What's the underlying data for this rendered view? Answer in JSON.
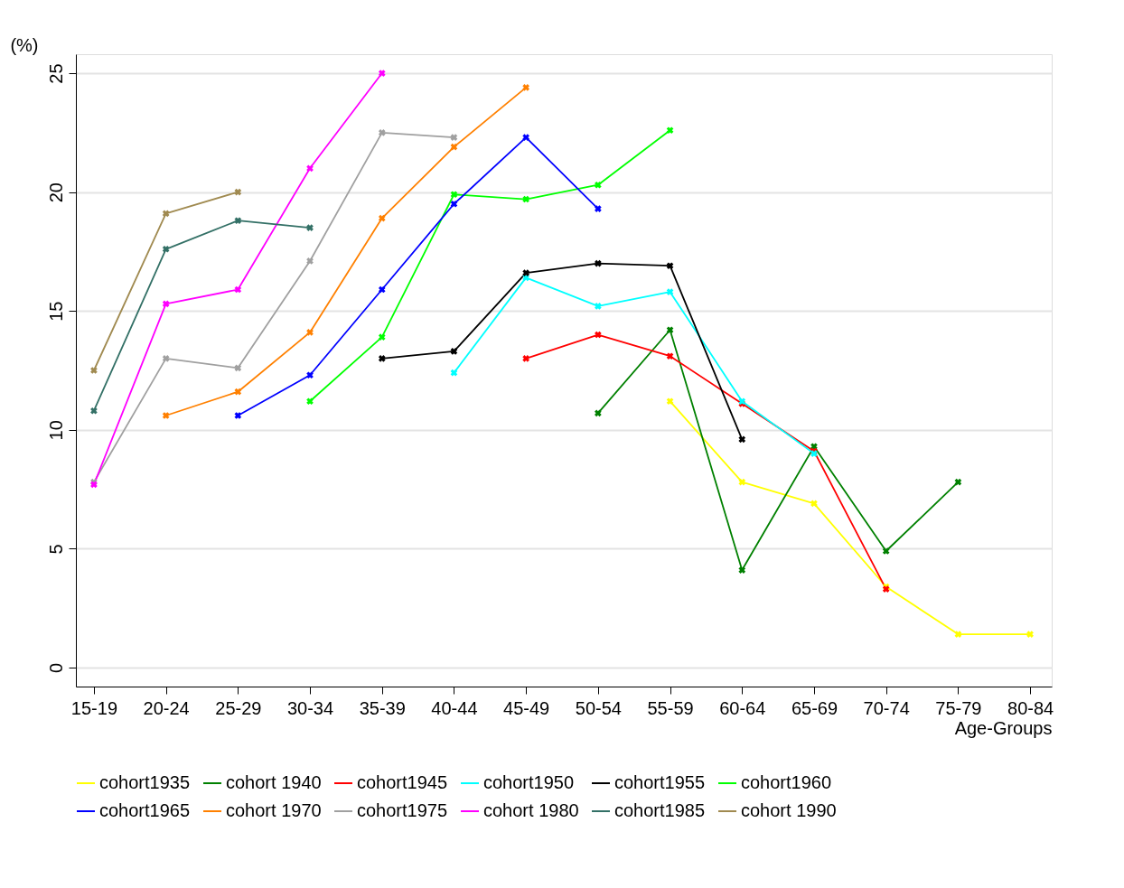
{
  "chart_data": {
    "type": "line",
    "ylabel": "(%)",
    "xlabel": "Age-Groups",
    "categories": [
      "15-19",
      "20-24",
      "25-29",
      "30-34",
      "35-39",
      "40-44",
      "45-49",
      "50-54",
      "55-59",
      "60-64",
      "65-69",
      "70-74",
      "75-79",
      "80-84"
    ],
    "series": [
      {
        "name": "cohort1935",
        "color": "#ffff00",
        "values": [
          null,
          null,
          null,
          null,
          null,
          null,
          null,
          null,
          11.2,
          7.8,
          6.9,
          3.4,
          1.4,
          1.4
        ]
      },
      {
        "name": "cohort 1940",
        "color": "#008000",
        "values": [
          null,
          null,
          null,
          null,
          null,
          null,
          null,
          10.7,
          14.2,
          4.1,
          9.3,
          4.9,
          7.8,
          null
        ]
      },
      {
        "name": "cohort1945",
        "color": "#ff0000",
        "values": [
          null,
          null,
          null,
          null,
          null,
          null,
          13.0,
          14.0,
          13.1,
          11.1,
          9.1,
          3.3,
          null,
          null
        ]
      },
      {
        "name": "cohort1950",
        "color": "#00ffff",
        "values": [
          null,
          null,
          null,
          null,
          null,
          12.4,
          16.4,
          15.2,
          15.8,
          11.2,
          9.0,
          null,
          null,
          null
        ]
      },
      {
        "name": "cohort1955",
        "color": "#000000",
        "values": [
          null,
          null,
          null,
          null,
          13.0,
          13.3,
          16.6,
          17.0,
          16.9,
          9.6,
          null,
          null,
          null,
          null
        ]
      },
      {
        "name": "cohort1960",
        "color": "#00ff00",
        "values": [
          null,
          null,
          null,
          11.2,
          13.9,
          19.9,
          19.7,
          20.3,
          22.6,
          null,
          null,
          null,
          null,
          null
        ]
      },
      {
        "name": "cohort1965",
        "color": "#0000ff",
        "values": [
          null,
          null,
          10.6,
          12.3,
          15.9,
          19.5,
          22.3,
          19.3,
          null,
          null,
          null,
          null,
          null,
          null
        ]
      },
      {
        "name": "cohort 1970",
        "color": "#ff8000",
        "values": [
          null,
          10.6,
          11.6,
          14.1,
          18.9,
          21.9,
          24.4,
          null,
          null,
          null,
          null,
          null,
          null,
          null
        ]
      },
      {
        "name": "cohort1975",
        "color": "#a0a0a0",
        "values": [
          7.8,
          13.0,
          12.6,
          17.1,
          22.5,
          22.3,
          null,
          null,
          null,
          null,
          null,
          null,
          null,
          null
        ]
      },
      {
        "name": "cohort 1980",
        "color": "#ff00ff",
        "values": [
          7.7,
          15.3,
          15.9,
          21.0,
          25.0,
          null,
          null,
          null,
          null,
          null,
          null,
          null,
          null,
          null
        ]
      },
      {
        "name": "cohort1985",
        "color": "#337066",
        "values": [
          10.8,
          17.6,
          18.8,
          18.5,
          null,
          null,
          null,
          null,
          null,
          null,
          null,
          null,
          null,
          null
        ]
      },
      {
        "name": "cohort 1990",
        "color": "#a08a50",
        "values": [
          12.5,
          19.1,
          20.0,
          null,
          null,
          null,
          null,
          null,
          null,
          null,
          null,
          null,
          null,
          null
        ]
      }
    ],
    "ylim": [
      -0.8,
      25.8
    ],
    "yticks": [
      0,
      5,
      10,
      15,
      20,
      25
    ],
    "grid": "y",
    "legend": "bottom",
    "marker": "cross",
    "line_style": "solid"
  }
}
